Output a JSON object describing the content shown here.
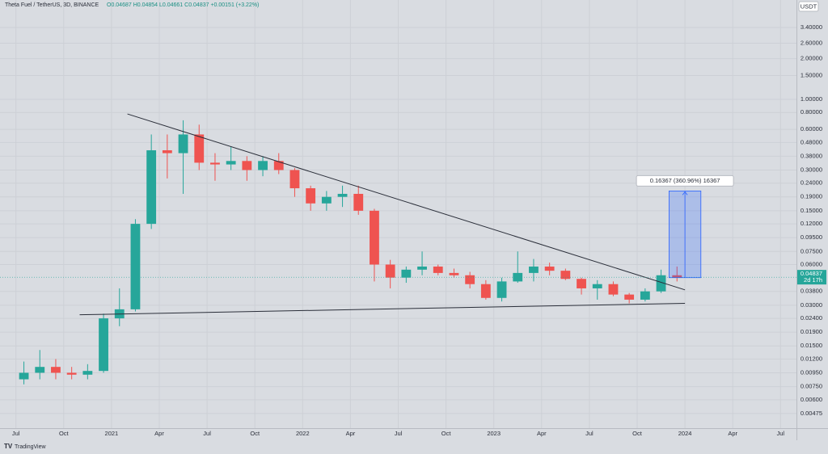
{
  "chart_data": {
    "type": "candlestick",
    "title": "Theta Fuel / TetherUS, 3D, BINANCE",
    "ohlc_readout": "O0.04687 H0.04854 L0.04661 C0.04837 +0.00151 (+3.22%)",
    "currency": "USDT",
    "watermark": "TradingView",
    "countdown": "2d 17h",
    "last_price": 0.04837,
    "log_scale": true,
    "grid": true,
    "up_color": "#26a69a",
    "down_color": "#ef5350",
    "x": [
      "2020-07",
      "2020-08",
      "2020-09",
      "2020-10",
      "2020-11",
      "2020-12",
      "2021-01",
      "2021-02",
      "2021-03",
      "2021-04",
      "2021-05",
      "2021-06",
      "2021-07",
      "2021-08",
      "2021-09",
      "2021-10",
      "2021-11",
      "2021-12",
      "2022-01",
      "2022-02",
      "2022-03",
      "2022-04",
      "2022-05",
      "2022-06",
      "2022-07",
      "2022-08",
      "2022-09",
      "2022-10",
      "2022-11",
      "2022-12",
      "2023-01",
      "2023-02",
      "2023-03",
      "2023-04",
      "2023-05",
      "2023-06",
      "2023-07",
      "2023-08",
      "2023-09",
      "2023-10",
      "2023-11",
      "2023-12"
    ],
    "open": [
      0.0085,
      0.0095,
      0.0105,
      0.0095,
      0.0092,
      0.0098,
      0.024,
      0.028,
      0.12,
      0.42,
      0.4,
      0.55,
      0.34,
      0.33,
      0.35,
      0.3,
      0.35,
      0.3,
      0.22,
      0.17,
      0.19,
      0.2,
      0.15,
      0.06,
      0.048,
      0.055,
      0.058,
      0.052,
      0.05,
      0.043,
      0.034,
      0.045,
      0.052,
      0.058,
      0.054,
      0.047,
      0.04,
      0.043,
      0.036,
      0.033,
      0.038,
      0.05
    ],
    "high": [
      0.0115,
      0.014,
      0.012,
      0.0105,
      0.011,
      0.026,
      0.04,
      0.13,
      0.55,
      0.55,
      0.7,
      0.65,
      0.4,
      0.45,
      0.38,
      0.38,
      0.4,
      0.31,
      0.23,
      0.21,
      0.23,
      0.23,
      0.155,
      0.065,
      0.058,
      0.075,
      0.06,
      0.056,
      0.053,
      0.046,
      0.048,
      0.075,
      0.066,
      0.062,
      0.056,
      0.048,
      0.046,
      0.045,
      0.037,
      0.04,
      0.055,
      0.058
    ],
    "low": [
      0.0078,
      0.0085,
      0.0085,
      0.0085,
      0.0085,
      0.0095,
      0.021,
      0.027,
      0.11,
      0.26,
      0.2,
      0.3,
      0.25,
      0.3,
      0.25,
      0.27,
      0.28,
      0.19,
      0.15,
      0.15,
      0.16,
      0.14,
      0.045,
      0.04,
      0.044,
      0.05,
      0.05,
      0.048,
      0.04,
      0.033,
      0.032,
      0.044,
      0.045,
      0.05,
      0.046,
      0.036,
      0.033,
      0.035,
      0.031,
      0.032,
      0.037,
      0.045
    ],
    "close": [
      0.0095,
      0.0105,
      0.0095,
      0.0092,
      0.0098,
      0.024,
      0.028,
      0.12,
      0.42,
      0.4,
      0.55,
      0.34,
      0.33,
      0.35,
      0.3,
      0.35,
      0.3,
      0.22,
      0.17,
      0.19,
      0.2,
      0.15,
      0.06,
      0.048,
      0.055,
      0.058,
      0.052,
      0.05,
      0.043,
      0.034,
      0.045,
      0.052,
      0.058,
      0.054,
      0.047,
      0.04,
      0.043,
      0.036,
      0.033,
      0.038,
      0.05,
      0.048
    ],
    "trend_lines": [
      {
        "x": [
          "2021-02",
          "2024-01"
        ],
        "y": [
          0.78,
          0.039
        ]
      },
      {
        "x": [
          "2020-11",
          "2024-01"
        ],
        "y": [
          0.0255,
          0.031
        ]
      }
    ],
    "measure": {
      "x": [
        "2023-12",
        "2024-02"
      ],
      "y": [
        0.048,
        0.21
      ],
      "label": "0.16367 (360.96%) 16367"
    },
    "xlim": [
      "2020-06",
      "2024-08"
    ],
    "xticks": [
      {
        "value": "2020-07",
        "label": "Jul"
      },
      {
        "value": "2020-10",
        "label": "Oct"
      },
      {
        "value": "2021-01",
        "label": "2021"
      },
      {
        "value": "2021-04",
        "label": "Apr"
      },
      {
        "value": "2021-07",
        "label": "Jul"
      },
      {
        "value": "2021-10",
        "label": "Oct"
      },
      {
        "value": "2022-01",
        "label": "2022"
      },
      {
        "value": "2022-04",
        "label": "Apr"
      },
      {
        "value": "2022-07",
        "label": "Jul"
      },
      {
        "value": "2022-10",
        "label": "Oct"
      },
      {
        "value": "2023-01",
        "label": "2023"
      },
      {
        "value": "2023-04",
        "label": "Apr"
      },
      {
        "value": "2023-07",
        "label": "Jul"
      },
      {
        "value": "2023-10",
        "label": "Oct"
      },
      {
        "value": "2024-01",
        "label": "2024"
      },
      {
        "value": "2024-04",
        "label": "Apr"
      },
      {
        "value": "2024-07",
        "label": "Jul"
      }
    ],
    "ylim": [
      0.0037,
      5.43
    ],
    "yticks": [
      {
        "value": 3.4,
        "label": "3.40000"
      },
      {
        "value": 2.6,
        "label": "2.60000"
      },
      {
        "value": 2.0,
        "label": "2.00000"
      },
      {
        "value": 1.5,
        "label": "1.50000"
      },
      {
        "value": 1.0,
        "label": "1.00000"
      },
      {
        "value": 0.8,
        "label": "0.80000"
      },
      {
        "value": 0.6,
        "label": "0.60000"
      },
      {
        "value": 0.48,
        "label": "0.48000"
      },
      {
        "value": 0.38,
        "label": "0.38000"
      },
      {
        "value": 0.3,
        "label": "0.30000"
      },
      {
        "value": 0.24,
        "label": "0.24000"
      },
      {
        "value": 0.19,
        "label": "0.19000"
      },
      {
        "value": 0.15,
        "label": "0.15000"
      },
      {
        "value": 0.12,
        "label": "0.12000"
      },
      {
        "value": 0.095,
        "label": "0.09500"
      },
      {
        "value": 0.075,
        "label": "0.07500"
      },
      {
        "value": 0.06,
        "label": "0.06000"
      },
      {
        "value": 0.038,
        "label": "0.03800"
      },
      {
        "value": 0.03,
        "label": "0.03000"
      },
      {
        "value": 0.024,
        "label": "0.02400"
      },
      {
        "value": 0.019,
        "label": "0.01900"
      },
      {
        "value": 0.015,
        "label": "0.01500"
      },
      {
        "value": 0.012,
        "label": "0.01200"
      },
      {
        "value": 0.0095,
        "label": "0.00950"
      },
      {
        "value": 0.0075,
        "label": "0.00750"
      },
      {
        "value": 0.006,
        "label": "0.00600"
      },
      {
        "value": 0.00475,
        "label": "0.00475"
      }
    ]
  }
}
